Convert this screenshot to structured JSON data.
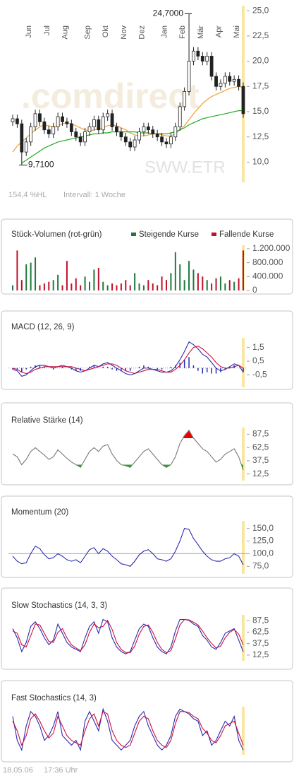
{
  "chart_data": [
    {
      "type": "candlestick",
      "categories": [
        null,
        null,
        null,
        "Jun",
        null,
        null,
        null,
        "Jul",
        null,
        null,
        null,
        "Aug",
        null,
        null,
        null,
        null,
        "Sep",
        null,
        null,
        null,
        "Okt",
        null,
        null,
        null,
        "Nov",
        null,
        null,
        null,
        "Dez",
        null,
        null,
        null,
        null,
        "Jan",
        null,
        null,
        null,
        "Feb",
        null,
        null,
        null,
        "Mär",
        null,
        null,
        null,
        "Apr",
        null,
        null,
        null,
        "Mai",
        null,
        null
      ],
      "open": [
        14.0,
        14.3,
        13.8,
        11.0,
        12.0,
        13.5,
        14.8,
        14.0,
        13.2,
        12.8,
        13.5,
        14.5,
        14.0,
        13.8,
        13.0,
        12.5,
        12.0,
        13.0,
        13.5,
        14.2,
        13.2,
        14.5,
        14.8,
        13.5,
        13.0,
        12.5,
        12.0,
        11.5,
        12.2,
        13.0,
        13.5,
        13.2,
        12.8,
        12.5,
        12.0,
        11.8,
        12.5,
        13.5,
        15.5,
        17.0,
        20.0,
        21.0,
        20.5,
        20.0,
        20.5,
        18.5,
        17.5,
        17.8,
        18.5,
        18.0,
        18.2,
        17.5
      ],
      "high": [
        14.7,
        14.7,
        14.2,
        12.4,
        13.9,
        15.2,
        15.2,
        14.4,
        13.6,
        13.9,
        14.9,
        14.9,
        14.4,
        14.2,
        13.4,
        12.9,
        13.4,
        13.9,
        14.6,
        14.6,
        14.9,
        15.2,
        15.2,
        13.9,
        13.4,
        12.9,
        12.4,
        12.6,
        13.4,
        13.9,
        13.9,
        13.6,
        13.2,
        12.9,
        12.4,
        12.9,
        13.9,
        15.9,
        17.4,
        24.7,
        21.4,
        21.4,
        20.9,
        20.9,
        20.9,
        18.9,
        18.2,
        18.9,
        18.9,
        18.6,
        18.6,
        17.9
      ],
      "low": [
        13.6,
        13.4,
        9.71,
        10.6,
        11.6,
        13.1,
        13.6,
        12.8,
        12.4,
        12.4,
        13.1,
        13.6,
        13.4,
        12.6,
        12.1,
        11.6,
        11.6,
        12.6,
        13.1,
        12.8,
        12.8,
        14.1,
        13.1,
        12.6,
        12.1,
        11.6,
        11.1,
        11.1,
        11.8,
        12.6,
        12.8,
        12.4,
        12.1,
        11.6,
        11.4,
        11.4,
        12.1,
        13.1,
        15.1,
        16.6,
        19.6,
        20.1,
        19.6,
        19.6,
        18.1,
        17.1,
        17.1,
        17.4,
        17.6,
        17.6,
        17.1,
        14.4
      ],
      "close": [
        14.3,
        13.8,
        11.0,
        12.0,
        13.5,
        14.8,
        14.0,
        13.2,
        12.8,
        13.5,
        14.5,
        14.0,
        13.8,
        13.0,
        12.5,
        12.0,
        13.0,
        13.5,
        14.2,
        13.2,
        14.5,
        14.8,
        13.5,
        13.0,
        12.5,
        12.0,
        11.5,
        12.2,
        13.0,
        13.5,
        13.2,
        12.8,
        12.5,
        12.0,
        11.8,
        12.5,
        13.5,
        15.5,
        17.0,
        20.0,
        21.0,
        20.5,
        20.0,
        20.5,
        18.5,
        17.5,
        17.8,
        18.5,
        18.0,
        18.2,
        17.5,
        14.8
      ],
      "series": [
        {
          "color": "#f0a030",
          "values": [
            11.0,
            11.6,
            12.0,
            12.4,
            12.8,
            13.2,
            13.5,
            13.7,
            13.6,
            13.5,
            13.6,
            13.8,
            13.9,
            13.8,
            13.6,
            13.4,
            13.2,
            13.1,
            13.2,
            13.3,
            13.4,
            13.6,
            13.7,
            13.6,
            13.4,
            13.2,
            12.9,
            12.7,
            12.6,
            12.6,
            12.7,
            12.8,
            12.8,
            12.7,
            12.6,
            12.6,
            12.8,
            13.2,
            13.6,
            14.2,
            14.8,
            15.3,
            15.8,
            16.2,
            16.5,
            16.7,
            16.9,
            17.1,
            17.3,
            17.4,
            17.5,
            17.4
          ]
        },
        {
          "color": "#22aa22",
          "values": [
            null,
            null,
            9.9,
            10.2,
            10.5,
            10.8,
            11.1,
            11.4,
            11.6,
            11.8,
            12.0,
            12.1,
            12.2,
            12.3,
            12.4,
            12.5,
            12.6,
            12.7,
            12.8,
            12.8,
            12.9,
            12.9,
            13.0,
            13.0,
            13.0,
            13.0,
            13.0,
            13.0,
            12.9,
            12.9,
            12.9,
            12.8,
            12.8,
            12.8,
            12.8,
            12.9,
            13.0,
            13.2,
            13.4,
            13.7,
            13.9,
            14.1,
            14.3,
            14.4,
            14.5,
            14.6,
            14.7,
            14.8,
            14.9,
            15.0,
            15.1,
            15.1
          ]
        }
      ],
      "annotations": [
        {
          "label": "24,7000",
          "value": 24.7
        },
        {
          "label": "9,7100",
          "value": 9.71
        }
      ],
      "watermark": ".comdirect",
      "symbol": "SWW.ETR",
      "notes": [
        "154,4 %HL",
        "Intervall: 1 Woche"
      ],
      "ylim": [
        8,
        25.5
      ],
      "yticks": [
        {
          "value": 25,
          "label": "25,0"
        },
        {
          "value": 22.5,
          "label": "22,5"
        },
        {
          "value": 20,
          "label": "20,0"
        },
        {
          "value": 17.5,
          "label": "17,5"
        },
        {
          "value": 15,
          "label": "15,0"
        },
        {
          "value": 12.5,
          "label": "12,5"
        },
        {
          "value": 10,
          "label": "10,0"
        }
      ]
    },
    {
      "type": "bar",
      "title": "Stück-Volumen (rot-grün)",
      "legend": [
        {
          "name": "Steigende Kurse",
          "color": "#1d7a3c"
        },
        {
          "name": "Fallende Kurse",
          "color": "#c0102a"
        }
      ],
      "values": [
        150000,
        1150000,
        300000,
        750000,
        800000,
        950000,
        150000,
        200000,
        250000,
        300000,
        450000,
        150000,
        850000,
        200000,
        350000,
        150000,
        400000,
        250000,
        600000,
        650000,
        250000,
        150000,
        200000,
        150000,
        200000,
        300000,
        150000,
        500000,
        200000,
        150000,
        300000,
        200000,
        150000,
        400000,
        300000,
        500000,
        1100000,
        750000,
        300000,
        850000,
        600000,
        500000,
        400000,
        300000,
        200000,
        350000,
        400000,
        200000,
        300000,
        250000,
        350000,
        1150000
      ],
      "ylim": [
        0,
        1300000
      ],
      "yticks": [
        {
          "value": 1200000,
          "label": "1.200.000"
        },
        {
          "value": 800000,
          "label": "800.000"
        },
        {
          "value": 400000,
          "label": "400.000"
        },
        0
      ]
    },
    {
      "type": "line",
      "title": "MACD (12, 26, 9)",
      "series": [
        {
          "color": "#2a2ab0",
          "values": [
            -0.1,
            -0.2,
            -0.6,
            -0.5,
            -0.2,
            0.1,
            0.2,
            0.2,
            0.1,
            0.0,
            0.1,
            0.2,
            0.1,
            0.0,
            -0.2,
            -0.3,
            -0.2,
            0.0,
            0.2,
            0.1,
            0.3,
            0.4,
            0.2,
            0.0,
            -0.2,
            -0.4,
            -0.5,
            -0.4,
            -0.2,
            0.0,
            0.0,
            -0.1,
            -0.2,
            -0.3,
            -0.3,
            -0.2,
            0.1,
            0.6,
            1.2,
            1.9,
            1.7,
            1.4,
            1.0,
            0.8,
            0.4,
            0.0,
            -0.2,
            -0.1,
            0.1,
            0.3,
            0.2,
            -0.3
          ]
        },
        {
          "color": "#cc1040",
          "values": [
            0.0,
            -0.1,
            -0.3,
            -0.4,
            -0.3,
            -0.1,
            0.0,
            0.1,
            0.1,
            0.1,
            0.1,
            0.1,
            0.1,
            0.1,
            0.0,
            -0.1,
            -0.2,
            -0.1,
            0.0,
            0.1,
            0.2,
            0.3,
            0.3,
            0.2,
            0.0,
            -0.2,
            -0.3,
            -0.4,
            -0.3,
            -0.2,
            -0.1,
            -0.1,
            -0.1,
            -0.2,
            -0.3,
            -0.3,
            -0.1,
            0.2,
            0.6,
            1.1,
            1.5,
            1.6,
            1.4,
            1.1,
            0.8,
            0.4,
            0.1,
            0.0,
            0.0,
            0.1,
            0.2,
            0.0
          ]
        },
        {
          "color": "#2a2ab0",
          "style": "histogram",
          "values": [
            -0.1,
            -0.1,
            -0.3,
            -0.1,
            0.1,
            0.2,
            0.2,
            0.1,
            0.0,
            -0.1,
            0.0,
            0.1,
            0.0,
            -0.1,
            -0.2,
            -0.2,
            0.0,
            0.1,
            0.2,
            0.0,
            0.1,
            0.1,
            -0.1,
            -0.2,
            -0.2,
            -0.2,
            -0.2,
            0.0,
            0.1,
            0.2,
            0.1,
            0.0,
            -0.1,
            -0.1,
            0.0,
            0.1,
            0.2,
            0.4,
            0.6,
            0.8,
            0.2,
            -0.2,
            -0.4,
            -0.3,
            -0.4,
            -0.4,
            -0.3,
            -0.1,
            0.1,
            0.2,
            0.0,
            -0.3
          ]
        }
      ],
      "ylim": [
        -1.4,
        2.2
      ],
      "yticks": [
        {
          "value": 1.5,
          "label": "1,5"
        },
        {
          "value": 0.5,
          "label": "0,5"
        },
        {
          "value": -0.5,
          "label": "-0,5"
        }
      ]
    },
    {
      "type": "line",
      "title": "Relative Stärke (14)",
      "series": [
        {
          "color": "#777777",
          "values": [
            50,
            45,
            30,
            40,
            55,
            62,
            55,
            48,
            40,
            45,
            58,
            50,
            42,
            35,
            30,
            25,
            40,
            55,
            62,
            55,
            65,
            68,
            50,
            38,
            30,
            28,
            25,
            35,
            45,
            55,
            60,
            50,
            40,
            30,
            25,
            30,
            45,
            70,
            85,
            95,
            80,
            70,
            60,
            55,
            45,
            35,
            40,
            50,
            55,
            60,
            45,
            20
          ]
        }
      ],
      "upper": 80,
      "upper_color": "#ee0000",
      "lower": 30,
      "lower_color": "#22aa22",
      "ylim": [
        0,
        100
      ],
      "yticks": [
        {
          "value": 87.5,
          "label": "87,5"
        },
        {
          "value": 62.5,
          "label": "62,5"
        },
        {
          "value": 37.5,
          "label": "37,5"
        },
        {
          "value": 12.5,
          "label": "12,5"
        }
      ]
    },
    {
      "type": "line",
      "title": "Momentum (20)",
      "series": [
        {
          "color": "#2a2ab0",
          "values": [
            95,
            85,
            80,
            82,
            100,
            115,
            110,
            98,
            90,
            92,
            100,
            95,
            88,
            85,
            88,
            82,
            95,
            108,
            112,
            100,
            110,
            105,
            95,
            88,
            80,
            78,
            75,
            85,
            98,
            105,
            108,
            100,
            90,
            88,
            85,
            90,
            105,
            125,
            150,
            148,
            130,
            118,
            105,
            95,
            88,
            85,
            85,
            90,
            92,
            100,
            95,
            78
          ]
        }
      ],
      "reference": 100,
      "ylim": [
        60,
        165
      ],
      "yticks": [
        {
          "value": 150,
          "label": "150,0"
        },
        {
          "value": 125,
          "label": "125,0"
        },
        {
          "value": 100,
          "label": "100,0"
        },
        {
          "value": 75,
          "label": "75,0"
        }
      ]
    },
    {
      "type": "line",
      "title": "Slow Stochastics (14, 3, 3)",
      "series": [
        {
          "color": "#2a2ab0",
          "values": [
            70,
            50,
            20,
            40,
            75,
            85,
            70,
            50,
            35,
            45,
            80,
            60,
            40,
            30,
            25,
            20,
            50,
            75,
            85,
            60,
            90,
            85,
            50,
            30,
            20,
            15,
            20,
            45,
            70,
            80,
            75,
            50,
            30,
            20,
            15,
            30,
            65,
            90,
            90,
            88,
            80,
            75,
            55,
            45,
            30,
            25,
            40,
            60,
            65,
            70,
            45,
            20
          ]
        },
        {
          "color": "#cc1040",
          "values": [
            65,
            60,
            35,
            30,
            55,
            80,
            78,
            60,
            42,
            40,
            62,
            70,
            50,
            35,
            28,
            22,
            35,
            62,
            80,
            72,
            75,
            88,
            68,
            40,
            25,
            18,
            18,
            32,
            58,
            75,
            78,
            62,
            40,
            25,
            18,
            22,
            48,
            78,
            90,
            89,
            84,
            78,
            65,
            50,
            38,
            28,
            32,
            50,
            62,
            68,
            58,
            35
          ]
        }
      ],
      "ylim": [
        0,
        100
      ],
      "yticks": [
        {
          "value": 87.5,
          "label": "87,5"
        },
        {
          "value": 62.5,
          "label": "62,5"
        },
        {
          "value": 37.5,
          "label": "37,5"
        },
        {
          "value": 12.5,
          "label": "12,5"
        }
      ]
    },
    {
      "type": "line",
      "title": "Fast Stochastics (14, 3)",
      "series": [
        {
          "color": "#2a2ab0",
          "values": [
            80,
            30,
            10,
            60,
            90,
            80,
            60,
            30,
            40,
            60,
            90,
            40,
            30,
            20,
            30,
            10,
            70,
            90,
            70,
            50,
            95,
            70,
            30,
            20,
            10,
            20,
            30,
            60,
            80,
            90,
            60,
            40,
            20,
            10,
            20,
            40,
            80,
            95,
            90,
            85,
            75,
            70,
            40,
            50,
            20,
            30,
            50,
            70,
            60,
            80,
            30,
            10
          ]
        },
        {
          "color": "#cc1040",
          "values": [
            70,
            50,
            20,
            40,
            75,
            85,
            70,
            50,
            35,
            45,
            80,
            60,
            40,
            30,
            25,
            20,
            50,
            75,
            85,
            60,
            90,
            85,
            50,
            30,
            20,
            15,
            20,
            45,
            70,
            80,
            75,
            50,
            30,
            20,
            15,
            30,
            65,
            90,
            90,
            88,
            80,
            75,
            55,
            45,
            30,
            25,
            40,
            60,
            65,
            70,
            45,
            20
          ]
        }
      ],
      "ylim": [
        0,
        100
      ]
    }
  ],
  "footer": [
    "18.05.06",
    "17:36 Uhr"
  ]
}
